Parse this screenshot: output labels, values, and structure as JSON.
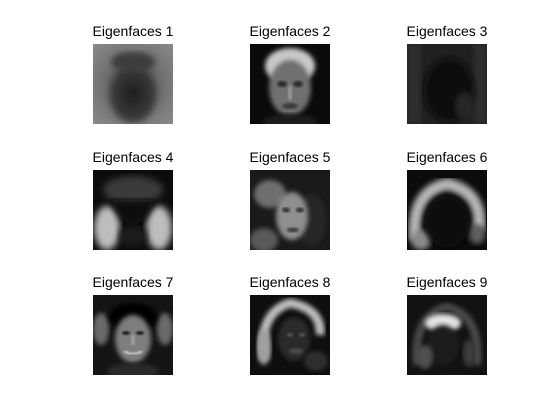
{
  "figure": {
    "background": "#ffffff",
    "panels": [
      {
        "title": "Eigenfaces 1",
        "image": "eigenface-1"
      },
      {
        "title": "Eigenfaces 2",
        "image": "eigenface-2"
      },
      {
        "title": "Eigenfaces 3",
        "image": "eigenface-3"
      },
      {
        "title": "Eigenfaces 4",
        "image": "eigenface-4"
      },
      {
        "title": "Eigenfaces 5",
        "image": "eigenface-5"
      },
      {
        "title": "Eigenfaces 6",
        "image": "eigenface-6"
      },
      {
        "title": "Eigenfaces 7",
        "image": "eigenface-7"
      },
      {
        "title": "Eigenfaces 8",
        "image": "eigenface-8"
      },
      {
        "title": "Eigenfaces 9",
        "image": "eigenface-9"
      }
    ]
  }
}
